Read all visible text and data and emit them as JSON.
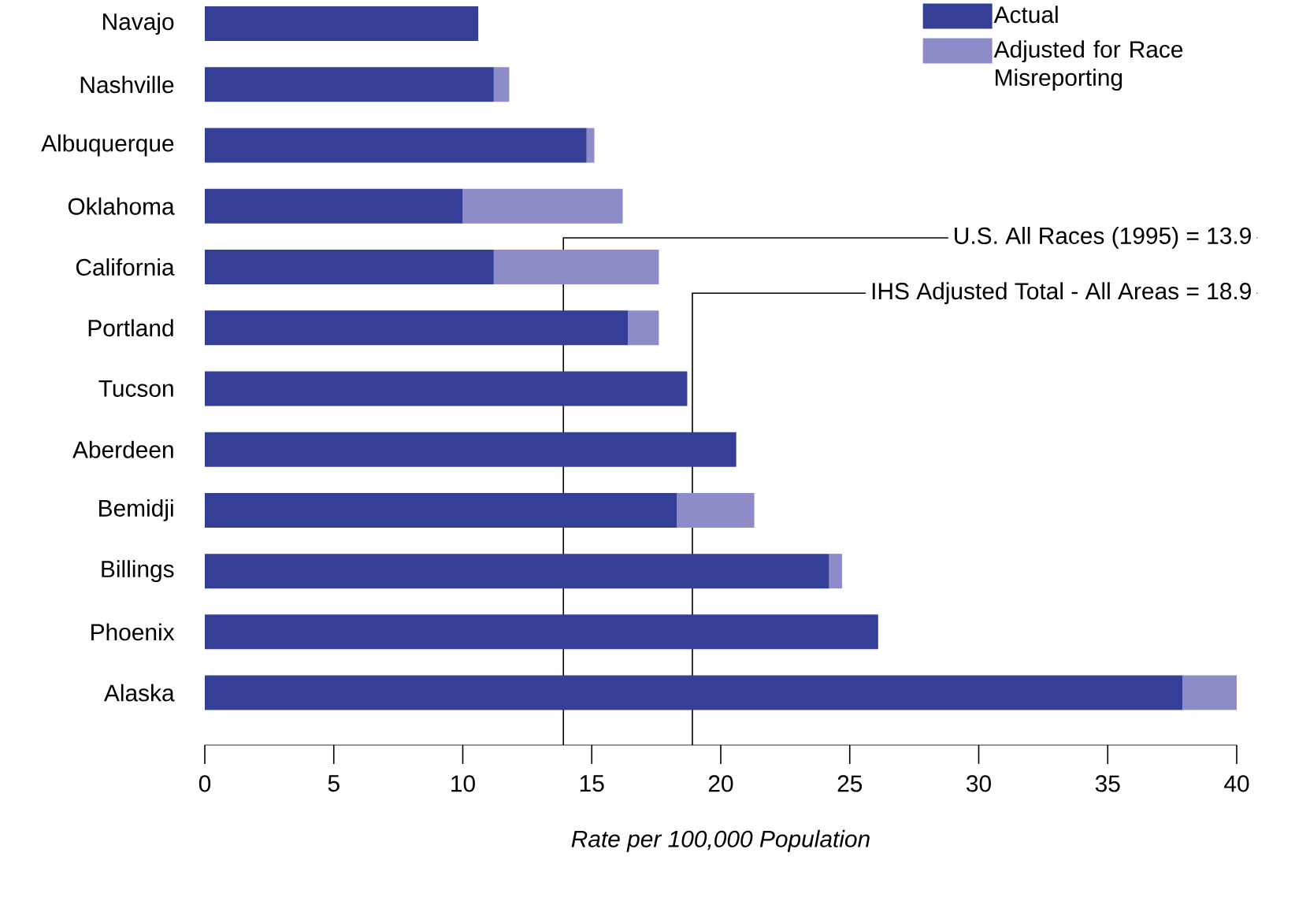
{
  "chart_data": {
    "type": "bar",
    "orientation": "horizontal",
    "stacked": true,
    "xlabel": "Rate per 100,000 Population",
    "categories": [
      "Navajo",
      "Nashville",
      "Albuquerque",
      "Oklahoma",
      "California",
      "Portland",
      "Tucson",
      "Aberdeen",
      "Bemidji",
      "Billings",
      "Phoenix",
      "Alaska"
    ],
    "series": [
      {
        "name": "Actual",
        "color": "#353f98",
        "values": [
          10.6,
          11.2,
          14.8,
          10.0,
          11.2,
          16.4,
          18.7,
          20.6,
          18.3,
          24.2,
          26.1,
          37.9
        ]
      },
      {
        "name": "Adjusted for Race Misreporting",
        "color": "#8d8cc8",
        "values": [
          null,
          0.6,
          0.3,
          6.2,
          6.4,
          1.2,
          null,
          null,
          3.0,
          0.5,
          null,
          2.1
        ]
      }
    ],
    "xlim": [
      0,
      40
    ],
    "xticks": [
      0,
      5,
      10,
      15,
      20,
      25,
      30,
      35,
      40
    ],
    "ref_lines": [
      {
        "axis": "x",
        "value": 13.9,
        "label": "U.S. All Races (1995) = 13.9"
      },
      {
        "axis": "x",
        "value": 18.9,
        "label": "IHS Adjusted Total - All Areas = 18.9"
      }
    ],
    "legend": "top right",
    "grid": false
  }
}
